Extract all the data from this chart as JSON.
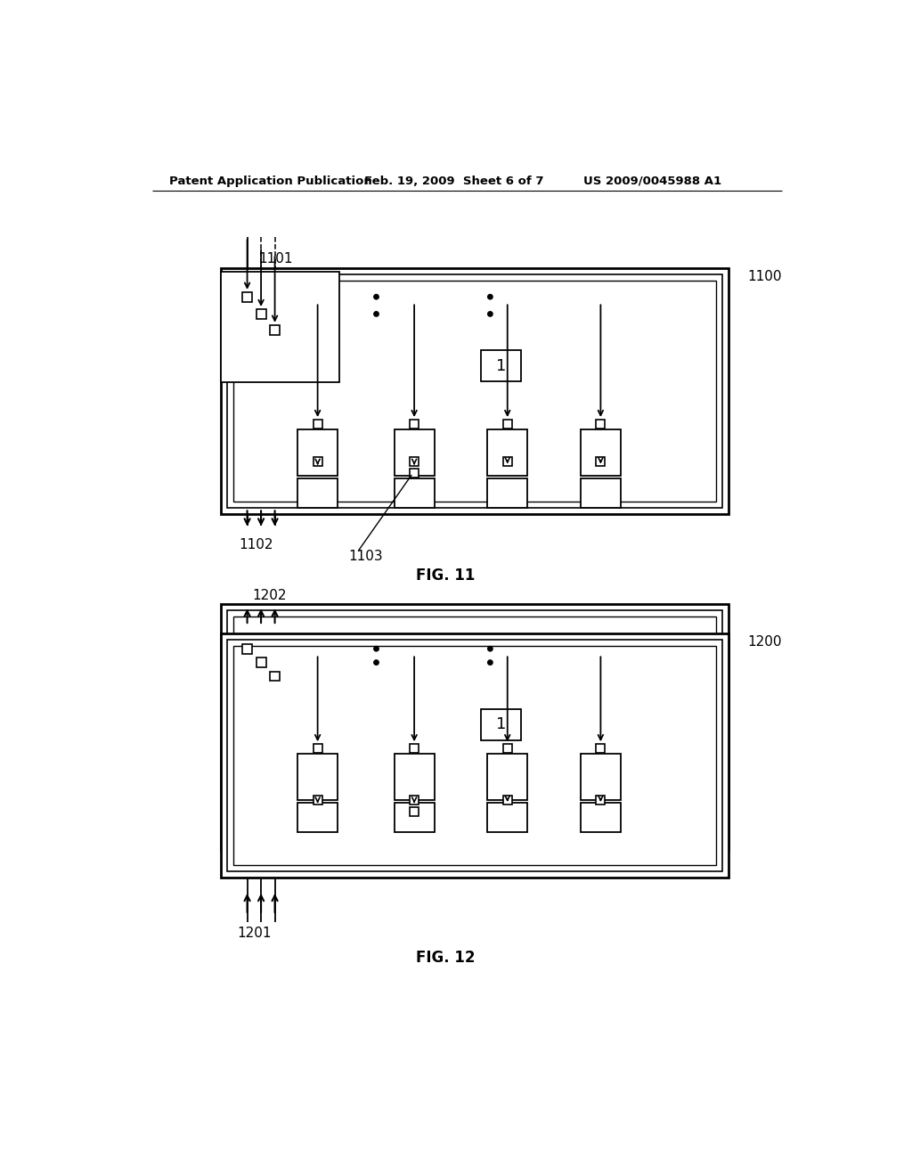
{
  "bg_color": "#ffffff",
  "header_left": "Patent Application Publication",
  "header_mid": "Feb. 19, 2009  Sheet 6 of 7",
  "header_right": "US 2009/0045988 A1",
  "fig11_label": "FIG. 11",
  "fig12_label": "FIG. 12",
  "label_1100": "1100",
  "label_1101": "1101",
  "label_1102": "1102",
  "label_1103": "1103",
  "label_1200": "1200",
  "label_1201": "1201",
  "label_1202": "1202"
}
